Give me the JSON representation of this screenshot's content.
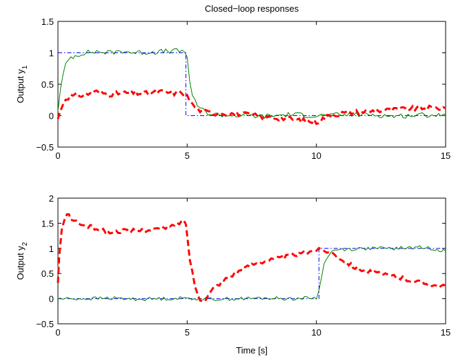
{
  "chart_data": [
    {
      "type": "line",
      "title": "Closed−loop responses",
      "xlabel": "",
      "ylabel": "Output y",
      "ylabel_subscript": "1",
      "xlim": [
        0,
        15
      ],
      "ylim": [
        -0.5,
        1.5
      ],
      "x_ticks": [
        0,
        5,
        10,
        15
      ],
      "y_ticks": [
        -0.5,
        0,
        0.5,
        1,
        1.5
      ],
      "x_tick_labels": [
        "0",
        "5",
        "10",
        "15"
      ],
      "y_tick_labels": [
        "−0.5",
        "0",
        "0.5",
        "1",
        "1.5"
      ],
      "grid": false,
      "series": [
        {
          "color": "#0000ff",
          "style": "dashdot",
          "width": 1,
          "x": [
            0,
            4.95,
            4.95,
            15
          ],
          "y": [
            1,
            1,
            0,
            0
          ]
        },
        {
          "color": "#007f00",
          "style": "solid",
          "width": 1,
          "x": [
            0,
            0.1,
            0.2,
            0.3,
            0.4,
            0.5,
            1,
            1.5,
            2,
            2.5,
            3,
            3.5,
            4,
            4.5,
            4.9,
            5.0,
            5.1,
            5.2,
            5.3,
            5.5,
            5.7,
            6,
            7,
            8,
            9,
            10,
            11,
            12,
            13,
            14,
            15
          ],
          "y": [
            0.1,
            0.4,
            0.65,
            0.8,
            0.88,
            0.93,
            1.0,
            1.02,
            1.0,
            1.03,
            1.0,
            1.01,
            1.02,
            1.03,
            1.02,
            0.95,
            0.55,
            0.3,
            0.22,
            0.12,
            0.06,
            0.02,
            0.0,
            -0.01,
            0.02,
            0.0,
            0.01,
            0.02,
            -0.01,
            0.01,
            0.02
          ],
          "noise": 0.04
        },
        {
          "color": "#ff0000",
          "style": "dashed",
          "width": 3,
          "x": [
            0,
            0.15,
            0.3,
            0.5,
            1,
            1.5,
            2,
            2.5,
            3,
            3.5,
            4,
            4.5,
            4.8,
            5.0,
            5.2,
            5.4,
            5.7,
            6,
            7,
            8,
            9,
            9.5,
            10,
            10.5,
            11,
            12,
            13,
            14,
            15
          ],
          "y": [
            -0.05,
            0.15,
            0.28,
            0.31,
            0.33,
            0.38,
            0.34,
            0.36,
            0.36,
            0.35,
            0.38,
            0.36,
            0.37,
            0.3,
            0.18,
            0.1,
            0.06,
            0.04,
            0.03,
            -0.02,
            -0.05,
            -0.08,
            -0.1,
            0.0,
            0.04,
            0.07,
            0.09,
            0.12,
            0.12
          ],
          "noise": 0.04
        }
      ]
    },
    {
      "type": "line",
      "title": "",
      "xlabel": "Time [s]",
      "ylabel": "Output y",
      "ylabel_subscript": "2",
      "xlim": [
        0,
        15
      ],
      "ylim": [
        -0.5,
        2
      ],
      "x_ticks": [
        0,
        5,
        10,
        15
      ],
      "y_ticks": [
        -0.5,
        0,
        0.5,
        1,
        1.5,
        2
      ],
      "x_tick_labels": [
        "0",
        "5",
        "10",
        "15"
      ],
      "y_tick_labels": [
        "−0.5",
        "0",
        "0.5",
        "1",
        "1.5",
        "2"
      ],
      "grid": false,
      "series": [
        {
          "color": "#0000ff",
          "style": "dashdot",
          "width": 1,
          "x": [
            0,
            10.1,
            10.1,
            15
          ],
          "y": [
            0,
            0,
            1,
            1
          ]
        },
        {
          "color": "#007f00",
          "style": "solid",
          "width": 1,
          "x": [
            0,
            1,
            2,
            3,
            4,
            5,
            6,
            7,
            8,
            9,
            10.0,
            10.1,
            10.2,
            10.3,
            10.4,
            10.5,
            10.7,
            11,
            12,
            13,
            14,
            14.5,
            15
          ],
          "y": [
            0.0,
            0.0,
            0.01,
            -0.01,
            0.0,
            0.01,
            -0.01,
            0.0,
            0.01,
            0.0,
            0.02,
            0.15,
            0.45,
            0.68,
            0.82,
            0.9,
            0.96,
            0.98,
            1.0,
            1.0,
            1.02,
            1.0,
            0.95
          ],
          "noise": 0.035
        },
        {
          "color": "#ff0000",
          "style": "dashed",
          "width": 3,
          "x": [
            0,
            0.05,
            0.15,
            0.25,
            0.35,
            0.5,
            0.8,
            1,
            1.5,
            2,
            2.5,
            3,
            3.5,
            4,
            4.5,
            4.8,
            4.95,
            5.1,
            5.3,
            5.5,
            5.7,
            6,
            6.5,
            7,
            7.5,
            8,
            8.5,
            9,
            9.5,
            10,
            10.3,
            10.6,
            11,
            11.5,
            12,
            12.5,
            13,
            13.5,
            14,
            14.5,
            15
          ],
          "y": [
            0.3,
            0.85,
            1.35,
            1.6,
            1.68,
            1.6,
            1.5,
            1.45,
            1.4,
            1.32,
            1.35,
            1.35,
            1.37,
            1.4,
            1.45,
            1.55,
            1.5,
            0.8,
            0.25,
            0.0,
            -0.02,
            0.2,
            0.4,
            0.55,
            0.68,
            0.75,
            0.8,
            0.85,
            0.9,
            0.98,
            0.96,
            0.92,
            0.78,
            0.62,
            0.55,
            0.48,
            0.45,
            0.38,
            0.33,
            0.27,
            0.25
          ],
          "noise": 0.04
        }
      ]
    }
  ]
}
